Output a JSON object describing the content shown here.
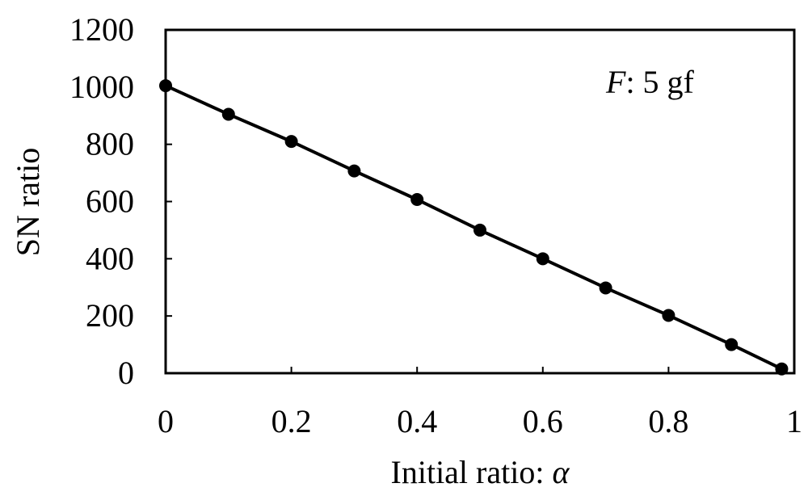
{
  "chart_data": {
    "type": "line",
    "xlabel": "Initial ratio: ",
    "xlabel_symbol": "α",
    "ylabel": "SN ratio",
    "annotation_symbol": "F",
    "annotation_text": ": 5 gf",
    "xlim": [
      0,
      1
    ],
    "ylim": [
      0,
      1200
    ],
    "x_ticks": [
      0,
      0.2,
      0.4,
      0.6,
      0.8,
      1
    ],
    "x_tick_labels": [
      "0",
      "0.2",
      "0.4",
      "0.6",
      "0.8",
      "1"
    ],
    "y_ticks": [
      0,
      200,
      400,
      600,
      800,
      1000,
      1200
    ],
    "y_tick_labels": [
      "0",
      "200",
      "400",
      "600",
      "800",
      "1000",
      "1200"
    ],
    "grid": false,
    "series": [
      {
        "x": [
          0,
          0.1,
          0.2,
          0.3,
          0.4,
          0.5,
          0.6,
          0.7,
          0.8,
          0.9,
          0.98
        ],
        "y": [
          1005,
          905,
          810,
          707,
          607,
          500,
          400,
          298,
          202,
          100,
          15
        ]
      }
    ],
    "line_color": "#000000",
    "marker_color": "#000000"
  }
}
